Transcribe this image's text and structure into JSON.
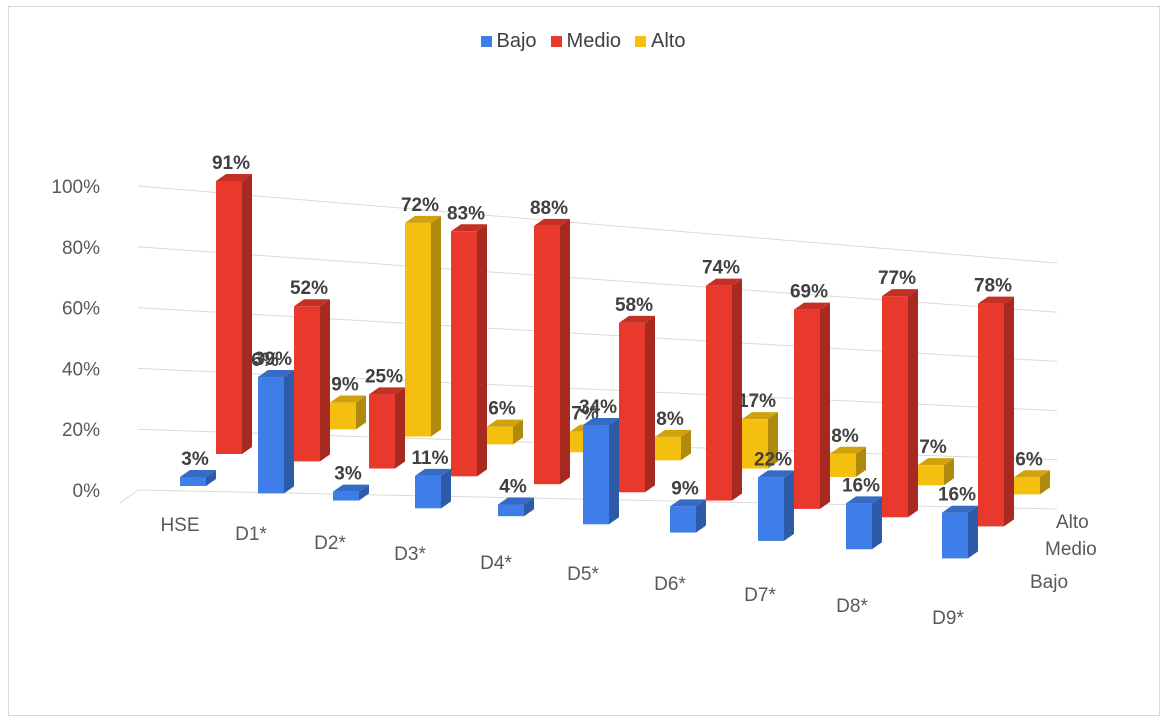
{
  "chart_data": {
    "type": "bar",
    "title": "",
    "xlabel": "",
    "ylabel": "",
    "ylim": [
      0,
      100
    ],
    "y_ticks": [
      "0%",
      "20%",
      "40%",
      "60%",
      "80%",
      "100%"
    ],
    "categories": [
      "HSE",
      "D1*",
      "D2*",
      "D3*",
      "D4*",
      "D5*",
      "D6*",
      "D7*",
      "D8*",
      "D9*"
    ],
    "depth_labels": [
      "Alto",
      "Medio",
      "Bajo"
    ],
    "legend_position": "top",
    "grid": true,
    "series": [
      {
        "name": "Bajo",
        "color": "#3f7ee8",
        "values": [
          3,
          39,
          3,
          11,
          4,
          34,
          9,
          22,
          16,
          16
        ],
        "labels": [
          "3%",
          "39%",
          "3%",
          "11%",
          "4%",
          "34%",
          "9%",
          "22%",
          "16%",
          "16%"
        ]
      },
      {
        "name": "Medio",
        "color": "#e8392c",
        "values": [
          91,
          52,
          25,
          83,
          88,
          58,
          74,
          69,
          77,
          78
        ],
        "labels": [
          "91%",
          "52%",
          "25%",
          "83%",
          "88%",
          "58%",
          "74%",
          "69%",
          "77%",
          "78%"
        ]
      },
      {
        "name": "Alto",
        "color": "#f5bf10",
        "values": [
          0,
          9,
          72,
          6,
          7,
          8,
          17,
          8,
          7,
          6
        ],
        "labels": [
          "",
          "9%",
          "72%",
          "6%",
          "7%",
          "8%",
          "17%",
          "8%",
          "7%",
          "6%"
        ]
      }
    ],
    "extra_labels": [
      {
        "text": "6%",
        "category": "D1*"
      }
    ]
  },
  "legend": {
    "items": [
      {
        "label": "Bajo",
        "color": "#3f7ee8"
      },
      {
        "label": "Medio",
        "color": "#e8392c"
      },
      {
        "label": "Alto",
        "color": "#f5bf10"
      }
    ]
  }
}
